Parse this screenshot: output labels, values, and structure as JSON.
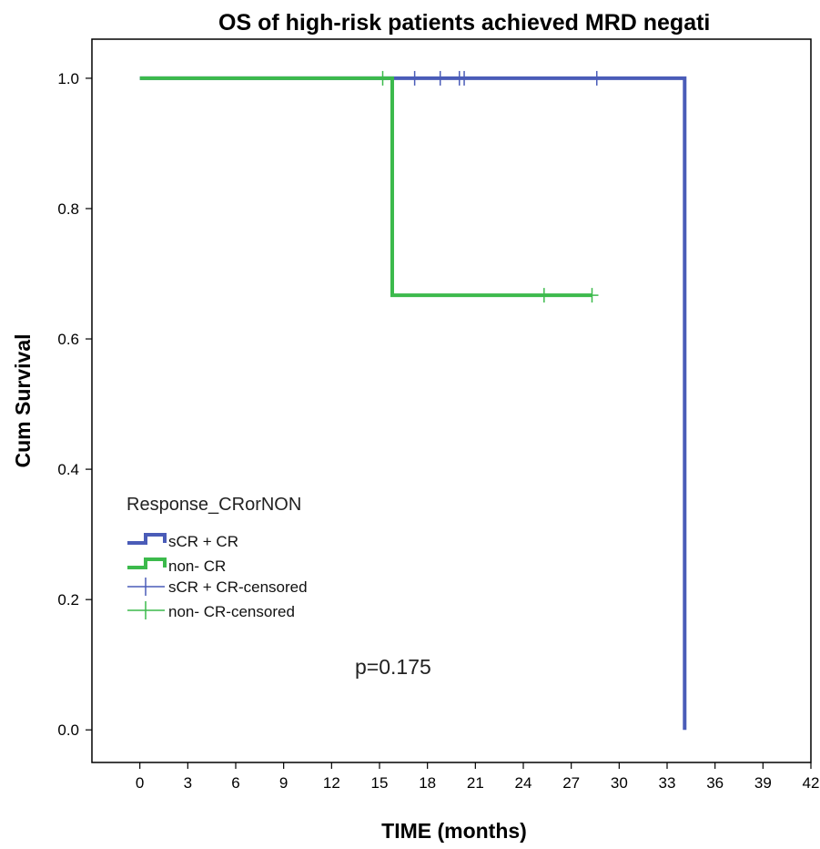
{
  "chart_data": {
    "type": "line",
    "subtype": "kaplan-meier-step",
    "title": "OS of high-risk patients achieved MRD negati",
    "xlabel": "TIME (months)",
    "ylabel": "Cum Survival",
    "xlim": [
      -3,
      42
    ],
    "ylim": [
      -0.05,
      1.06
    ],
    "x_ticks": [
      0,
      3,
      6,
      9,
      12,
      15,
      18,
      21,
      24,
      27,
      30,
      33,
      36,
      39,
      42
    ],
    "y_ticks": [
      0.0,
      0.2,
      0.4,
      0.6,
      0.8,
      1.0
    ],
    "y_tick_labels": [
      "0.0",
      "0.2",
      "0.4",
      "0.6",
      "0.8",
      "1.0"
    ],
    "grid": false,
    "legend": {
      "title": "Response_CRorNON",
      "placement": "left-middle",
      "entries": [
        "sCR + CR",
        "non- CR",
        "sCR + CR-censored",
        "non- CR-censored"
      ]
    },
    "annotations": [
      "p=0.175"
    ],
    "series": [
      {
        "name": "sCR + CR",
        "color": "#4a5cb8",
        "steps": [
          {
            "x": 0,
            "y": 1.0
          },
          {
            "x": 34.1,
            "y": 1.0
          },
          {
            "x": 34.1,
            "y": 0.0
          }
        ],
        "censored": [
          {
            "x": 17.2,
            "y": 1.0
          },
          {
            "x": 18.8,
            "y": 1.0
          },
          {
            "x": 20.0,
            "y": 1.0
          },
          {
            "x": 20.3,
            "y": 1.0
          },
          {
            "x": 28.6,
            "y": 1.0
          }
        ]
      },
      {
        "name": "non- CR",
        "color": "#3cba4c",
        "steps": [
          {
            "x": 0,
            "y": 1.0
          },
          {
            "x": 15.8,
            "y": 1.0
          },
          {
            "x": 15.8,
            "y": 0.667
          },
          {
            "x": 28.3,
            "y": 0.667
          }
        ],
        "censored": [
          {
            "x": 15.2,
            "y": 1.0
          },
          {
            "x": 25.3,
            "y": 0.667
          },
          {
            "x": 28.3,
            "y": 0.667
          }
        ]
      }
    ]
  }
}
